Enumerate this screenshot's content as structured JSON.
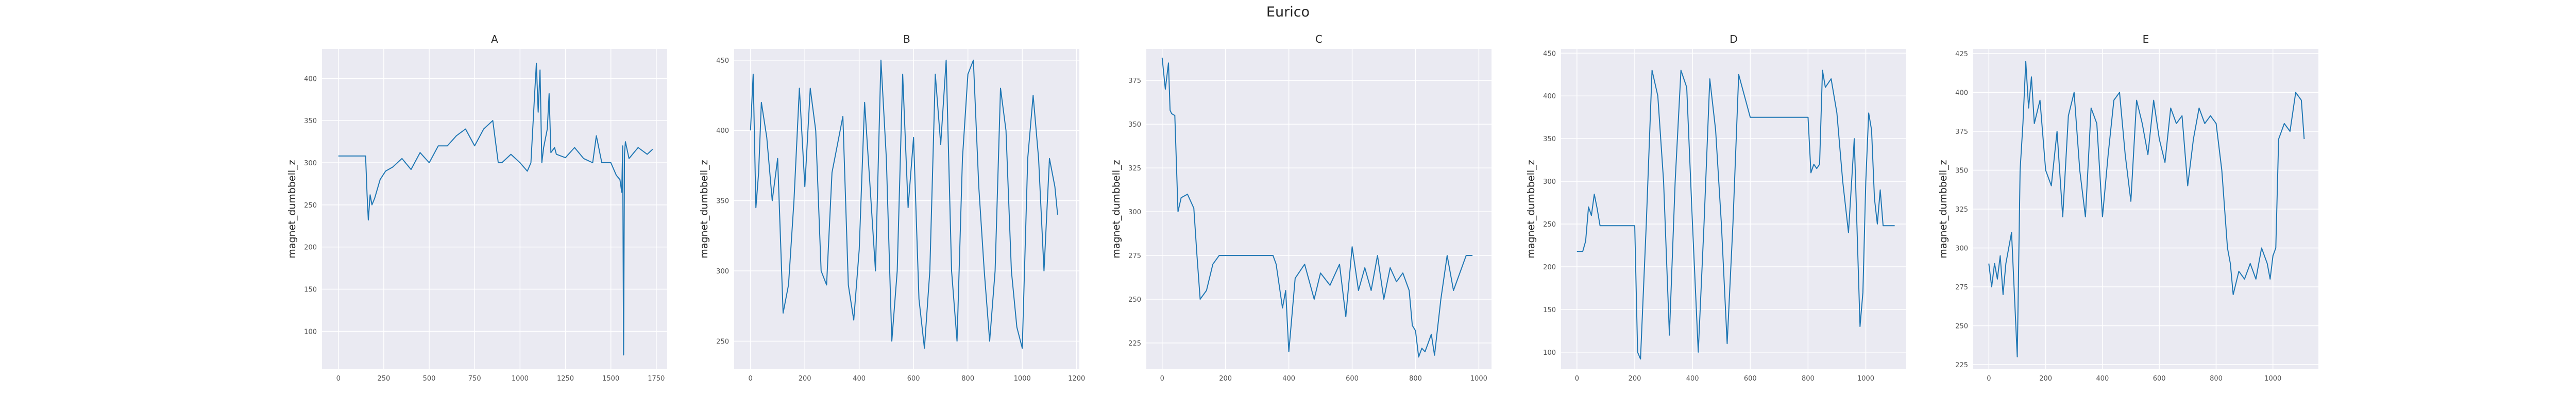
{
  "title": "Eurico",
  "chart_data": [
    {
      "type": "line",
      "title": "A",
      "xlabel": "",
      "ylabel": "magnet_dumbbell_z",
      "xlim": [
        -90,
        1810
      ],
      "ylim": [
        55,
        435
      ],
      "xticks": [
        0,
        250,
        500,
        750,
        1000,
        1250,
        1500,
        1750
      ],
      "yticks": [
        100,
        150,
        200,
        250,
        300,
        350,
        400
      ],
      "grid": true,
      "color": "#1f77b4",
      "series": [
        {
          "x": [
            0,
            150,
            158,
            165,
            175,
            185,
            200,
            230,
            260,
            300,
            350,
            400,
            450,
            500,
            550,
            600,
            650,
            700,
            750,
            800,
            850,
            880,
            900,
            950,
            1000,
            1040,
            1060,
            1080,
            1090,
            1100,
            1110,
            1120,
            1130,
            1150,
            1160,
            1170,
            1190,
            1200,
            1250,
            1300,
            1350,
            1400,
            1420,
            1450,
            1500,
            1530,
            1550,
            1560,
            1565,
            1570,
            1575,
            1580,
            1600,
            1650,
            1700,
            1730
          ],
          "y": [
            308,
            308,
            262,
            232,
            262,
            250,
            258,
            280,
            290,
            295,
            305,
            292,
            312,
            300,
            320,
            320,
            332,
            340,
            320,
            340,
            350,
            300,
            300,
            310,
            300,
            290,
            300,
            380,
            418,
            360,
            410,
            300,
            318,
            340,
            382,
            312,
            318,
            310,
            306,
            318,
            305,
            300,
            332,
            300,
            300,
            285,
            280,
            265,
            320,
            72,
            310,
            325,
            305,
            318,
            310,
            316
          ]
        }
      ]
    },
    {
      "type": "line",
      "title": "B",
      "xlabel": "",
      "ylabel": "magnet_dumbbell_z",
      "xlim": [
        -60,
        1210
      ],
      "ylim": [
        230,
        458
      ],
      "xticks": [
        0,
        200,
        400,
        600,
        800,
        1000,
        1200
      ],
      "yticks": [
        250,
        300,
        350,
        400,
        450
      ],
      "grid": true,
      "color": "#1f77b4",
      "series": [
        {
          "x": [
            0,
            10,
            20,
            30,
            40,
            60,
            80,
            100,
            120,
            140,
            160,
            180,
            200,
            220,
            240,
            260,
            280,
            300,
            320,
            340,
            360,
            380,
            400,
            420,
            440,
            460,
            480,
            500,
            520,
            540,
            560,
            580,
            600,
            620,
            640,
            660,
            680,
            700,
            720,
            740,
            760,
            780,
            800,
            820,
            840,
            860,
            880,
            900,
            920,
            940,
            960,
            980,
            1000,
            1020,
            1040,
            1060,
            1080,
            1100,
            1120,
            1130
          ],
          "y": [
            400,
            440,
            345,
            370,
            420,
            395,
            350,
            380,
            270,
            290,
            350,
            430,
            360,
            430,
            400,
            300,
            290,
            370,
            390,
            410,
            290,
            265,
            315,
            420,
            360,
            300,
            450,
            380,
            250,
            300,
            440,
            345,
            395,
            280,
            245,
            300,
            440,
            390,
            450,
            300,
            250,
            380,
            440,
            450,
            360,
            300,
            250,
            300,
            430,
            400,
            300,
            260,
            245,
            380,
            425,
            380,
            300,
            380,
            360,
            340
          ]
        }
      ]
    },
    {
      "type": "line",
      "title": "C",
      "xlabel": "",
      "ylabel": "magnet_dumbbell_z",
      "xlim": [
        -50,
        1040
      ],
      "ylim": [
        210,
        393
      ],
      "xticks": [
        0,
        200,
        400,
        600,
        800,
        1000
      ],
      "yticks": [
        225,
        250,
        275,
        300,
        325,
        350,
        375
      ],
      "grid": true,
      "color": "#1f77b4",
      "series": [
        {
          "x": [
            0,
            10,
            20,
            25,
            30,
            40,
            50,
            60,
            80,
            100,
            110,
            120,
            140,
            160,
            180,
            200,
            250,
            300,
            350,
            360,
            380,
            390,
            400,
            420,
            450,
            480,
            500,
            530,
            560,
            580,
            600,
            620,
            640,
            660,
            680,
            700,
            720,
            740,
            760,
            780,
            790,
            800,
            810,
            820,
            830,
            840,
            850,
            860,
            880,
            900,
            920,
            940,
            960,
            980
          ],
          "y": [
            388,
            370,
            385,
            358,
            356,
            355,
            300,
            308,
            310,
            302,
            275,
            250,
            255,
            270,
            275,
            275,
            275,
            275,
            275,
            270,
            245,
            255,
            220,
            262,
            270,
            250,
            265,
            258,
            270,
            240,
            280,
            255,
            268,
            255,
            275,
            250,
            268,
            260,
            265,
            255,
            235,
            232,
            217,
            222,
            220,
            225,
            230,
            218,
            250,
            275,
            255,
            265,
            275,
            275
          ]
        }
      ]
    },
    {
      "type": "line",
      "title": "D",
      "xlabel": "",
      "ylabel": "magnet_dumbbell_z",
      "xlim": [
        -55,
        1140
      ],
      "ylim": [
        80,
        455
      ],
      "xticks": [
        0,
        200,
        400,
        600,
        800,
        1000
      ],
      "yticks": [
        100,
        150,
        200,
        250,
        300,
        350,
        400,
        450
      ],
      "grid": true,
      "color": "#1f77b4",
      "series": [
        {
          "x": [
            0,
            20,
            30,
            40,
            50,
            60,
            70,
            80,
            100,
            130,
            160,
            180,
            200,
            210,
            220,
            240,
            260,
            280,
            300,
            320,
            340,
            360,
            380,
            400,
            420,
            440,
            460,
            480,
            500,
            520,
            540,
            560,
            580,
            600,
            650,
            700,
            750,
            800,
            810,
            820,
            830,
            840,
            850,
            860,
            880,
            900,
            920,
            940,
            960,
            980,
            990,
            1000,
            1010,
            1020,
            1030,
            1040,
            1050,
            1060,
            1070,
            1080,
            1100
          ],
          "y": [
            218,
            218,
            230,
            270,
            260,
            285,
            268,
            248,
            248,
            248,
            248,
            248,
            248,
            100,
            92,
            250,
            430,
            400,
            300,
            120,
            300,
            430,
            410,
            250,
            100,
            250,
            420,
            360,
            250,
            110,
            250,
            425,
            400,
            375,
            375,
            375,
            375,
            375,
            310,
            320,
            315,
            320,
            430,
            410,
            420,
            380,
            300,
            240,
            350,
            130,
            170,
            300,
            380,
            360,
            280,
            250,
            290,
            248,
            248,
            248,
            248
          ]
        }
      ]
    },
    {
      "type": "line",
      "title": "E",
      "xlabel": "",
      "ylabel": "magnet_dumbbell_z",
      "xlim": [
        -55,
        1160
      ],
      "ylim": [
        222,
        428
      ],
      "xticks": [
        0,
        200,
        400,
        600,
        800,
        1000
      ],
      "yticks": [
        225,
        250,
        275,
        300,
        325,
        350,
        375,
        400,
        425
      ],
      "grid": true,
      "color": "#1f77b4",
      "series": [
        {
          "x": [
            0,
            10,
            20,
            30,
            40,
            50,
            60,
            80,
            100,
            110,
            120,
            130,
            140,
            150,
            160,
            180,
            200,
            220,
            240,
            260,
            280,
            300,
            320,
            340,
            360,
            380,
            400,
            420,
            440,
            460,
            480,
            500,
            520,
            540,
            560,
            580,
            600,
            620,
            640,
            660,
            680,
            700,
            720,
            740,
            760,
            780,
            800,
            820,
            840,
            850,
            860,
            880,
            900,
            920,
            940,
            960,
            980,
            990,
            1000,
            1010,
            1020,
            1040,
            1060,
            1080,
            1100,
            1110
          ],
          "y": [
            290,
            275,
            290,
            280,
            295,
            270,
            290,
            310,
            230,
            350,
            380,
            420,
            390,
            410,
            380,
            395,
            350,
            340,
            375,
            320,
            385,
            400,
            350,
            320,
            390,
            380,
            320,
            360,
            395,
            400,
            360,
            330,
            395,
            380,
            360,
            395,
            370,
            355,
            390,
            380,
            385,
            340,
            370,
            390,
            380,
            385,
            380,
            350,
            300,
            290,
            270,
            285,
            280,
            290,
            280,
            300,
            290,
            280,
            295,
            300,
            370,
            380,
            375,
            400,
            395,
            370
          ]
        }
      ]
    }
  ]
}
